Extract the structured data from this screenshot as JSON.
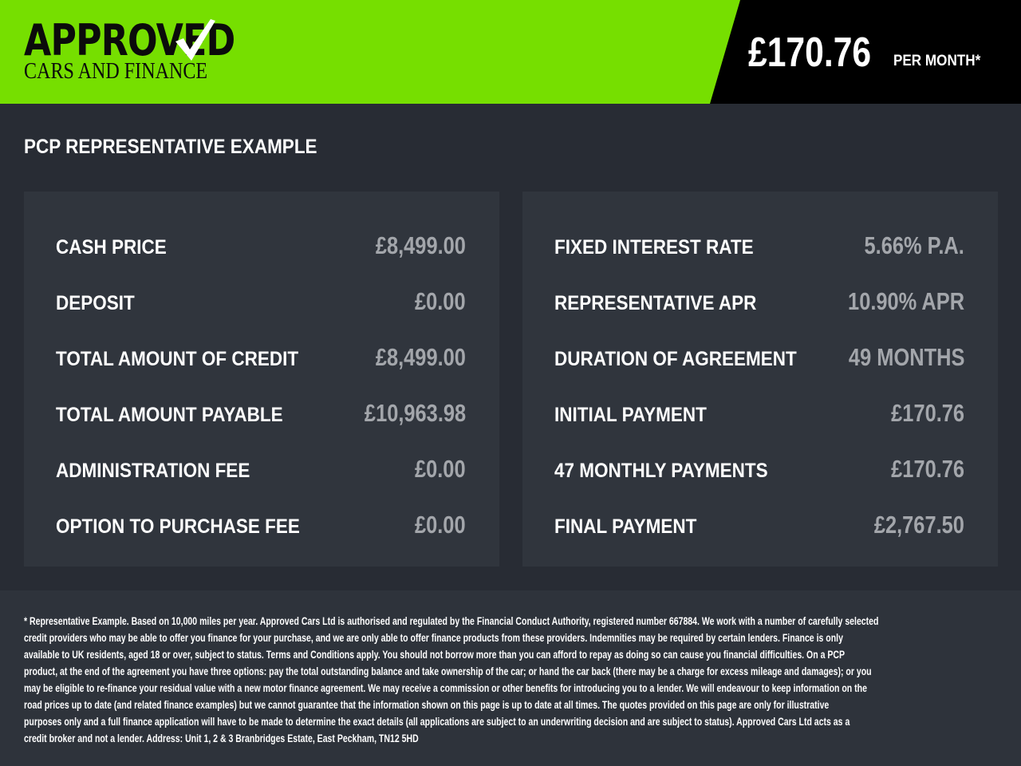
{
  "colors": {
    "brand_green": "#76df00",
    "header_black": "#000000",
    "background": "#282c34",
    "panel": "#30353d",
    "value_text": "#a3a6ab"
  },
  "logo": {
    "top": "APPROVED",
    "bottom": "CARS AND FINANCE",
    "icon": "checkmark-icon"
  },
  "header": {
    "price": "£170.76",
    "per_month": "PER MONTH*"
  },
  "title": "PCP REPRESENTATIVE EXAMPLE",
  "left_rows": [
    {
      "label": "CASH PRICE",
      "value": "£8,499.00"
    },
    {
      "label": "DEPOSIT",
      "value": "£0.00"
    },
    {
      "label": "TOTAL AMOUNT OF CREDIT",
      "value": "£8,499.00"
    },
    {
      "label": "TOTAL AMOUNT PAYABLE",
      "value": "£10,963.98"
    },
    {
      "label": "ADMINISTRATION FEE",
      "value": "£0.00"
    },
    {
      "label": "OPTION TO PURCHASE FEE",
      "value": "£0.00"
    }
  ],
  "right_rows": [
    {
      "label": "FIXED INTEREST RATE",
      "value": "5.66% P.A."
    },
    {
      "label": "REPRESENTATIVE APR",
      "value": "10.90% APR"
    },
    {
      "label": "DURATION OF AGREEMENT",
      "value": "49 MONTHS"
    },
    {
      "label": "INITIAL PAYMENT",
      "value": "£170.76"
    },
    {
      "label": "47 MONTHLY PAYMENTS",
      "value": "£170.76"
    },
    {
      "label": "FINAL PAYMENT",
      "value": "£2,767.50"
    }
  ],
  "footer_lines": [
    "* Representative Example. Based on 10,000 miles per year. Approved Cars Ltd is authorised and regulated by the Financial Conduct Authority, registered number 667884. We work with a number of carefully selected",
    "credit providers who may be able to offer you finance for your purchase, and we are only able to offer finance products from these providers. Indemnities may be required by certain lenders. Finance is only",
    "available to UK residents, aged 18 or over, subject to status. Terms and Conditions apply. You should not borrow more than you can afford to repay as doing so can cause you financial difficulties. On a PCP",
    "product, at the end of the agreement you have three options: pay the total outstanding balance and take ownership of the car; or hand the car back (there may be a charge for excess mileage and damages); or you",
    "may be eligible to re-finance your residual value with a new motor finance agreement. We may receive a commission or other benefits for introducing you to a lender. We will endeavour to keep information on the",
    "road prices up to date (and related finance examples) but we cannot guarantee that the information shown on this page is up to date at all times. The quotes provided on this page are only for illustrative",
    "purposes only and a full finance application will have to be made to determine the exact details (all applications are subject to an underwriting decision and are subject to status). Approved Cars Ltd acts as a",
    "credit broker and not a lender. Address: Unit 1, 2 & 3 Branbridges Estate, East Peckham, TN12 5HD"
  ]
}
